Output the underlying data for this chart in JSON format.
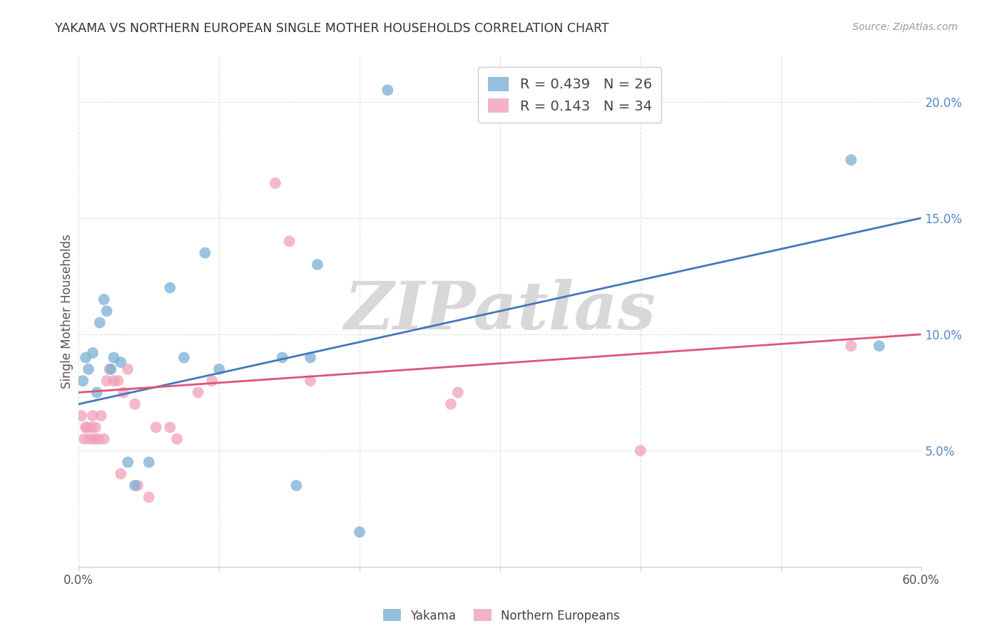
{
  "title": "YAKAMA VS NORTHERN EUROPEAN SINGLE MOTHER HOUSEHOLDS CORRELATION CHART",
  "source": "Source: ZipAtlas.com",
  "xlabel_ticks_show": [
    "0.0%",
    "60.0%"
  ],
  "xlabel_vals_show": [
    0,
    60
  ],
  "xlabel_minor_vals": [
    0,
    10,
    20,
    30,
    40,
    50,
    60
  ],
  "ylabel": "Single Mother Households",
  "ylabel_ticks_right": [
    "5.0%",
    "10.0%",
    "15.0%",
    "20.0%"
  ],
  "ylabel_vals_right": [
    5,
    10,
    15,
    20
  ],
  "xlim": [
    0,
    60
  ],
  "ylim": [
    0,
    22
  ],
  "legend_entries": [
    {
      "label": "R = 0.439   N = 26",
      "color": "#7bafd4"
    },
    {
      "label": "R = 0.143   N = 34",
      "color": "#f0a0b8"
    }
  ],
  "watermark": "ZIPatlas",
  "yakama_x": [
    0.3,
    0.5,
    0.7,
    1.0,
    1.3,
    1.5,
    1.8,
    2.0,
    2.3,
    2.5,
    3.0,
    3.5,
    4.0,
    5.0,
    6.5,
    7.5,
    9.0,
    14.5,
    16.5,
    17.0,
    20.0,
    22.0,
    55.0,
    57.0,
    10.0,
    15.5
  ],
  "yakama_y": [
    8.0,
    9.0,
    8.5,
    9.2,
    7.5,
    10.5,
    11.5,
    11.0,
    8.5,
    9.0,
    8.8,
    4.5,
    3.5,
    4.5,
    12.0,
    9.0,
    13.5,
    9.0,
    9.0,
    13.0,
    1.5,
    20.5,
    17.5,
    9.5,
    8.5,
    3.5
  ],
  "northern_x": [
    0.2,
    0.4,
    0.5,
    0.6,
    0.8,
    1.0,
    1.2,
    1.4,
    1.6,
    1.8,
    2.0,
    2.2,
    2.5,
    2.8,
    3.2,
    3.5,
    4.0,
    5.5,
    6.5,
    7.0,
    8.5,
    9.5,
    14.0,
    15.0,
    16.5,
    27.0,
    40.0,
    55.0,
    0.9,
    1.1,
    3.0,
    4.2,
    5.0,
    26.5
  ],
  "northern_y": [
    6.5,
    5.5,
    6.0,
    6.0,
    5.5,
    6.5,
    6.0,
    5.5,
    6.5,
    5.5,
    8.0,
    8.5,
    8.0,
    8.0,
    7.5,
    8.5,
    7.0,
    6.0,
    6.0,
    5.5,
    7.5,
    8.0,
    16.5,
    14.0,
    8.0,
    7.5,
    5.0,
    9.5,
    6.0,
    5.5,
    4.0,
    3.5,
    3.0,
    7.0
  ],
  "yakama_color": "#7bafd4",
  "northern_color": "#f0a0b8",
  "line_yakama_color": "#4477bb",
  "line_northern_color": "#dd5577",
  "bg_color": "#ffffff",
  "grid_color": "#e0e0e0",
  "title_color": "#333333",
  "watermark_color": "#d8d8d8",
  "right_tick_color": "#5588cc"
}
